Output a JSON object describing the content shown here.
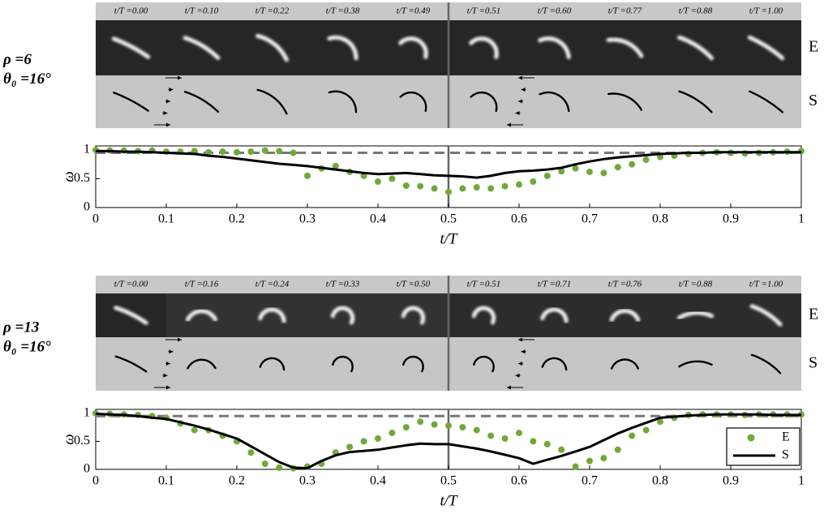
{
  "panels": [
    {
      "frame_labels": [
        "t/T =0.00",
        "t/T =0.10",
        "t/T =0.22",
        "t/T =0.38",
        "t/T =0.49",
        "t/T =0.51",
        "t/T =0.60",
        "t/T =0.77",
        "t/T =0.88",
        "t/T =1.00"
      ],
      "rho_label": "ρ =6",
      "theta_label": "θ₀ =16°",
      "row_labels": [
        "E",
        "S"
      ]
    },
    {
      "frame_labels": [
        "t/T =0.00",
        "t/T =0.16",
        "t/T =0.24",
        "t/T =0.33",
        "t/T =0.50",
        "t/T =0.51",
        "t/T =0.71",
        "t/T =0.76",
        "t/T =0.88",
        "t/T =1.00"
      ],
      "rho_label": "ρ =13",
      "theta_label": "θ₀ =16°",
      "row_labels": [
        "E",
        "S"
      ]
    }
  ],
  "chart_data": [
    {
      "type": "line",
      "xlabel": "t/T",
      "ylabel": "ω",
      "xlim": [
        0,
        1
      ],
      "ylim": [
        0,
        1.07
      ],
      "xticks": [
        0,
        0.1,
        0.2,
        0.3,
        0.4,
        0.5,
        0.6,
        0.7,
        0.8,
        0.9,
        1
      ],
      "yticks": [
        0,
        0.5,
        1
      ],
      "reference_line": 0.95,
      "vline": 0.5,
      "legend": false,
      "x": [
        0,
        0.02,
        0.04,
        0.06,
        0.08,
        0.1,
        0.12,
        0.14,
        0.16,
        0.18,
        0.2,
        0.22,
        0.24,
        0.26,
        0.28,
        0.3,
        0.32,
        0.34,
        0.36,
        0.38,
        0.4,
        0.42,
        0.44,
        0.46,
        0.48,
        0.5,
        0.52,
        0.54,
        0.56,
        0.58,
        0.6,
        0.62,
        0.64,
        0.66,
        0.68,
        0.7,
        0.72,
        0.74,
        0.76,
        0.78,
        0.8,
        0.82,
        0.84,
        0.86,
        0.88,
        0.9,
        0.92,
        0.94,
        0.96,
        0.98,
        1
      ],
      "series": [
        {
          "type": "scatter",
          "color": "#72a83a",
          "values": [
            1.0,
            0.99,
            0.99,
            0.98,
            0.99,
            0.97,
            0.97,
            0.98,
            0.96,
            0.97,
            0.96,
            0.97,
            0.99,
            0.98,
            0.95,
            0.55,
            0.68,
            0.72,
            0.62,
            0.55,
            0.45,
            0.5,
            0.38,
            0.37,
            0.33,
            0.27,
            0.33,
            0.35,
            0.33,
            0.37,
            0.4,
            0.45,
            0.55,
            0.63,
            0.68,
            0.62,
            0.6,
            0.7,
            0.75,
            0.83,
            0.88,
            0.9,
            0.93,
            0.95,
            0.96,
            0.95,
            0.94,
            0.95,
            0.96,
            0.97,
            0.98
          ]
        },
        {
          "type": "line",
          "color": "#000000",
          "values": [
            0.98,
            0.98,
            0.97,
            0.97,
            0.96,
            0.95,
            0.94,
            0.93,
            0.9,
            0.88,
            0.85,
            0.82,
            0.79,
            0.76,
            0.74,
            0.72,
            0.69,
            0.66,
            0.63,
            0.6,
            0.58,
            0.59,
            0.6,
            0.58,
            0.56,
            0.55,
            0.54,
            0.52,
            0.55,
            0.6,
            0.63,
            0.64,
            0.66,
            0.69,
            0.75,
            0.8,
            0.84,
            0.87,
            0.89,
            0.91,
            0.93,
            0.94,
            0.95,
            0.95,
            0.96,
            0.96,
            0.96,
            0.96,
            0.96,
            0.96,
            0.96
          ]
        }
      ]
    },
    {
      "type": "line",
      "xlabel": "t/T",
      "ylabel": "ω",
      "xlim": [
        0,
        1
      ],
      "ylim": [
        0,
        1.07
      ],
      "xticks": [
        0,
        0.1,
        0.2,
        0.3,
        0.4,
        0.5,
        0.6,
        0.7,
        0.8,
        0.9,
        1
      ],
      "yticks": [
        0,
        0.5,
        1
      ],
      "reference_line": 0.95,
      "vline": 0.5,
      "legend": "lower right",
      "x": [
        0,
        0.02,
        0.04,
        0.06,
        0.08,
        0.1,
        0.12,
        0.14,
        0.16,
        0.18,
        0.2,
        0.22,
        0.24,
        0.26,
        0.28,
        0.3,
        0.32,
        0.34,
        0.36,
        0.38,
        0.4,
        0.42,
        0.44,
        0.46,
        0.48,
        0.5,
        0.52,
        0.54,
        0.56,
        0.58,
        0.6,
        0.62,
        0.64,
        0.66,
        0.68,
        0.7,
        0.72,
        0.74,
        0.76,
        0.78,
        0.8,
        0.82,
        0.84,
        0.86,
        0.88,
        0.9,
        0.92,
        0.94,
        0.96,
        0.98,
        1
      ],
      "series": [
        {
          "name": "E",
          "type": "scatter",
          "color": "#72a83a",
          "values": [
            1.0,
            0.99,
            0.98,
            0.97,
            0.95,
            0.92,
            0.82,
            0.7,
            0.7,
            0.6,
            0.5,
            0.3,
            0.1,
            0.03,
            0.02,
            0.05,
            0.1,
            0.3,
            0.4,
            0.5,
            0.55,
            0.65,
            0.75,
            0.85,
            0.8,
            0.78,
            0.75,
            0.7,
            0.6,
            0.55,
            0.65,
            0.5,
            0.45,
            0.35,
            0.05,
            0.15,
            0.2,
            0.35,
            0.6,
            0.7,
            0.85,
            0.92,
            0.97,
            0.98,
            0.98,
            0.98,
            0.97,
            0.98,
            0.98,
            0.98,
            0.98
          ]
        },
        {
          "name": "S",
          "type": "line",
          "color": "#000000",
          "values": [
            0.99,
            0.98,
            0.97,
            0.95,
            0.92,
            0.9,
            0.84,
            0.78,
            0.71,
            0.63,
            0.55,
            0.41,
            0.27,
            0.13,
            0.03,
            0.02,
            0.15,
            0.25,
            0.31,
            0.33,
            0.35,
            0.39,
            0.43,
            0.46,
            0.45,
            0.45,
            0.41,
            0.37,
            0.32,
            0.26,
            0.2,
            0.1,
            0.17,
            0.24,
            0.32,
            0.4,
            0.52,
            0.64,
            0.74,
            0.83,
            0.92,
            0.94,
            0.96,
            0.97,
            0.98,
            0.98,
            0.98,
            0.98,
            0.97,
            0.97,
            0.97
          ]
        }
      ]
    }
  ]
}
